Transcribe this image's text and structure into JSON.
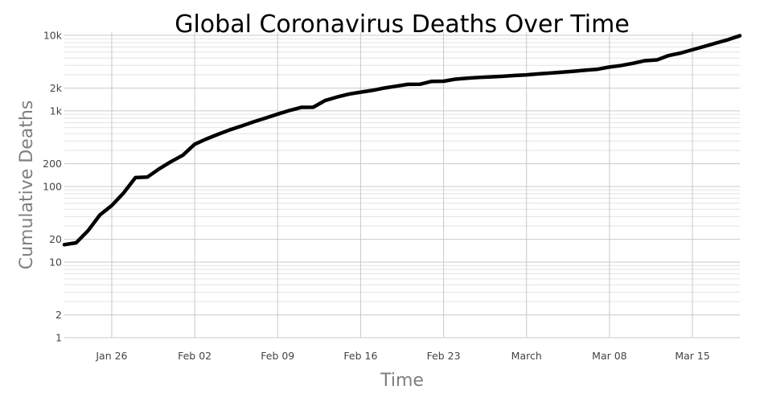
{
  "chart_data": {
    "type": "line",
    "title": "Global Coronavirus Deaths Over Time",
    "xlabel": "Time",
    "ylabel": "Cumulative Deaths",
    "yscale": "log",
    "ylim": [
      1,
      11000
    ],
    "xlim": [
      "2020-01-22",
      "2020-03-19"
    ],
    "grid": true,
    "legend": "none",
    "line_color": "#000000",
    "x_ticks": [
      {
        "date": "2020-01-26",
        "label": "Jan 26"
      },
      {
        "date": "2020-02-02",
        "label": "Feb 02"
      },
      {
        "date": "2020-02-09",
        "label": "Feb 09"
      },
      {
        "date": "2020-02-16",
        "label": "Feb 16"
      },
      {
        "date": "2020-02-23",
        "label": "Feb 23"
      },
      {
        "date": "2020-03-01",
        "label": "March"
      },
      {
        "date": "2020-03-08",
        "label": "Mar 08"
      },
      {
        "date": "2020-03-15",
        "label": "Mar 15"
      }
    ],
    "y_ticks": [
      {
        "value": 1,
        "label": "1"
      },
      {
        "value": 2,
        "label": "2"
      },
      {
        "value": 10,
        "label": "10"
      },
      {
        "value": 20,
        "label": "20"
      },
      {
        "value": 100,
        "label": "100"
      },
      {
        "value": 200,
        "label": "200"
      },
      {
        "value": 1000,
        "label": "1k"
      },
      {
        "value": 2000,
        "label": "2k"
      },
      {
        "value": 10000,
        "label": "10k"
      }
    ],
    "series": [
      {
        "x": [
          "2020-01-22",
          "2020-01-23",
          "2020-01-24",
          "2020-01-25",
          "2020-01-26",
          "2020-01-27",
          "2020-01-28",
          "2020-01-29",
          "2020-01-30",
          "2020-01-31",
          "2020-02-01",
          "2020-02-02",
          "2020-02-03",
          "2020-02-04",
          "2020-02-05",
          "2020-02-06",
          "2020-02-07",
          "2020-02-08",
          "2020-02-09",
          "2020-02-10",
          "2020-02-11",
          "2020-02-12",
          "2020-02-13",
          "2020-02-14",
          "2020-02-15",
          "2020-02-16",
          "2020-02-17",
          "2020-02-18",
          "2020-02-19",
          "2020-02-20",
          "2020-02-21",
          "2020-02-22",
          "2020-02-23",
          "2020-02-24",
          "2020-02-25",
          "2020-02-26",
          "2020-02-27",
          "2020-02-28",
          "2020-02-29",
          "2020-03-01",
          "2020-03-02",
          "2020-03-03",
          "2020-03-04",
          "2020-03-05",
          "2020-03-06",
          "2020-03-07",
          "2020-03-08",
          "2020-03-09",
          "2020-03-10",
          "2020-03-11",
          "2020-03-12",
          "2020-03-13",
          "2020-03-14",
          "2020-03-15",
          "2020-03-16",
          "2020-03-17",
          "2020-03-18",
          "2020-03-19"
        ],
        "y": [
          17,
          18,
          26,
          42,
          56,
          82,
          131,
          133,
          171,
          213,
          259,
          362,
          426,
          492,
          564,
          634,
          719,
          806,
          906,
          1013,
          1113,
          1118,
          1371,
          1523,
          1666,
          1770,
          1868,
          2007,
          2122,
          2247,
          2251,
          2458,
          2469,
          2629,
          2708,
          2770,
          2814,
          2872,
          2941,
          2996,
          3085,
          3160,
          3254,
          3348,
          3460,
          3558,
          3802,
          3988,
          4262,
          4615,
          4720,
          5404,
          5819,
          6440,
          7126,
          7905,
          8733,
          9867
        ]
      }
    ]
  }
}
